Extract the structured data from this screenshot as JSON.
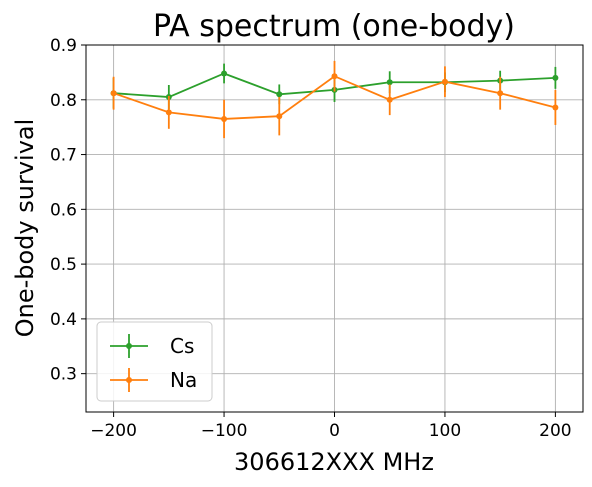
{
  "chart_data": {
    "type": "line",
    "title": "PA spectrum (one-body)",
    "xlabel": "306612XXX MHz",
    "ylabel": "One-body survival",
    "xlim": [
      -225,
      225
    ],
    "ylim": [
      0.23,
      0.9
    ],
    "x_ticks": [
      -200,
      -100,
      0,
      100,
      200
    ],
    "x_tick_labels": [
      "−200",
      "−100",
      "0",
      "100",
      "200"
    ],
    "y_ticks": [
      0.3,
      0.4,
      0.5,
      0.6,
      0.7,
      0.8,
      0.9
    ],
    "y_tick_labels": [
      "0.3",
      "0.4",
      "0.5",
      "0.6",
      "0.7",
      "0.8",
      "0.9"
    ],
    "grid": true,
    "legend_position": "bottom-left",
    "x": [
      -200,
      -150,
      -100,
      -50,
      0,
      50,
      100,
      150,
      200
    ],
    "series": [
      {
        "name": "Cs",
        "color": "#2ca02c",
        "values": [
          0.812,
          0.805,
          0.848,
          0.81,
          0.818,
          0.832,
          0.832,
          0.835,
          0.84
        ],
        "errors": [
          0.028,
          0.022,
          0.018,
          0.018,
          0.022,
          0.02,
          0.018,
          0.018,
          0.02
        ]
      },
      {
        "name": "Na",
        "color": "#ff7f0e",
        "values": [
          0.812,
          0.777,
          0.765,
          0.77,
          0.843,
          0.8,
          0.833,
          0.812,
          0.786
        ],
        "errors": [
          0.03,
          0.03,
          0.035,
          0.035,
          0.028,
          0.028,
          0.028,
          0.03,
          0.032
        ]
      }
    ]
  }
}
